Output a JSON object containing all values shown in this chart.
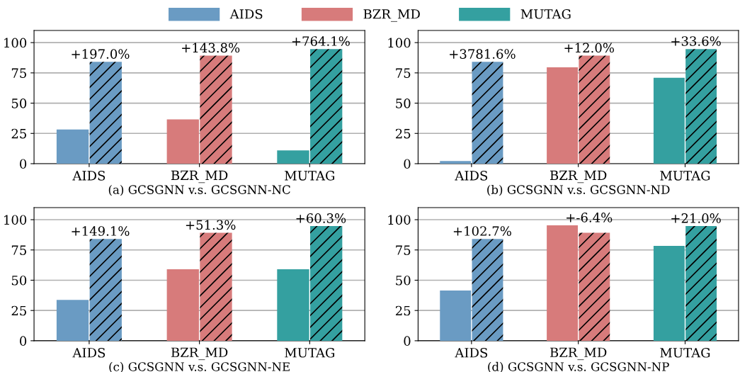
{
  "chart_data": [
    {
      "type": "bar",
      "xlabel": "(a) GCSGNN v.s. GCSGNN-NC",
      "categories": [
        "AIDS",
        "BZR_MD",
        "MUTAG"
      ],
      "ylim": [
        0,
        110
      ],
      "yticks": [
        0,
        25,
        50,
        75,
        100
      ],
      "grid": "y",
      "legend": "top",
      "series": [
        {
          "name": "AIDS",
          "color": "#6a9bc3",
          "values": [
            28.3,
            null,
            null
          ]
        },
        {
          "name": "BZR_MD",
          "color": "#d77b7b",
          "values": [
            null,
            36.6,
            null
          ]
        },
        {
          "name": "MUTAG",
          "color": "#34a0a0",
          "values": [
            null,
            null,
            11.0
          ]
        },
        {
          "values": [
            84.1,
            89.2,
            94.7
          ],
          "colors": [
            "#6a9bc3",
            "#d77b7b",
            "#34a0a0"
          ]
        }
      ],
      "annotations": [
        {
          "text": "+197.0%",
          "x": "AIDS",
          "y": 84.1
        },
        {
          "text": "+143.8%",
          "x": "BZR_MD",
          "y": 89.2
        },
        {
          "text": "+764.1%",
          "x": "MUTAG",
          "y": 94.7
        }
      ]
    },
    {
      "type": "bar",
      "xlabel": "(b) GCSGNN v.s. GCSGNN-ND",
      "categories": [
        "AIDS",
        "BZR_MD",
        "MUTAG"
      ],
      "ylim": [
        0,
        110
      ],
      "yticks": [
        0,
        25,
        50,
        75,
        100
      ],
      "grid": "y",
      "series": [
        {
          "values": [
            2.2,
            79.6,
            70.9
          ],
          "colors": [
            "#6a9bc3",
            "#d77b7b",
            "#34a0a0"
          ]
        },
        {
          "values": [
            84.1,
            89.2,
            94.7
          ],
          "colors": [
            "#6a9bc3",
            "#d77b7b",
            "#34a0a0"
          ]
        }
      ],
      "annotations": [
        {
          "text": "+3781.6%",
          "x": "AIDS",
          "y": 84.1
        },
        {
          "text": "+12.0%",
          "x": "BZR_MD",
          "y": 89.2
        },
        {
          "text": "+33.6%",
          "x": "MUTAG",
          "y": 94.7
        }
      ]
    },
    {
      "type": "bar",
      "xlabel": "(c) GCSGNN v.s. GCSGNN-NE",
      "categories": [
        "AIDS",
        "BZR_MD",
        "MUTAG"
      ],
      "ylim": [
        0,
        110
      ],
      "yticks": [
        0,
        25,
        50,
        75,
        100
      ],
      "grid": "y",
      "series": [
        {
          "values": [
            33.8,
            59.0,
            59.1
          ],
          "colors": [
            "#6a9bc3",
            "#d77b7b",
            "#34a0a0"
          ]
        },
        {
          "values": [
            84.1,
            89.2,
            94.7
          ],
          "colors": [
            "#6a9bc3",
            "#d77b7b",
            "#34a0a0"
          ]
        }
      ],
      "annotations": [
        {
          "text": "+149.1%",
          "x": "AIDS",
          "y": 84.1
        },
        {
          "text": "+51.3%",
          "x": "BZR_MD",
          "y": 89.2
        },
        {
          "text": "+60.3%",
          "x": "MUTAG",
          "y": 94.7
        }
      ]
    },
    {
      "type": "bar",
      "xlabel": "(d) GCSGNN v.s. GCSGNN-NP",
      "categories": [
        "AIDS",
        "BZR_MD",
        "MUTAG"
      ],
      "ylim": [
        0,
        110
      ],
      "yticks": [
        0,
        25,
        50,
        75,
        100
      ],
      "grid": "y",
      "series": [
        {
          "values": [
            41.5,
            95.3,
            78.3
          ],
          "colors": [
            "#6a9bc3",
            "#d77b7b",
            "#34a0a0"
          ]
        },
        {
          "values": [
            84.1,
            89.2,
            94.7
          ],
          "colors": [
            "#6a9bc3",
            "#d77b7b",
            "#34a0a0"
          ]
        }
      ],
      "annotations": [
        {
          "text": "+102.7%",
          "x": "AIDS",
          "y": 84.1
        },
        {
          "text": "+-6.4%",
          "x": "BZR_MD",
          "y": 95.3
        },
        {
          "text": "+21.0%",
          "x": "MUTAG",
          "y": 94.7
        }
      ]
    }
  ]
}
